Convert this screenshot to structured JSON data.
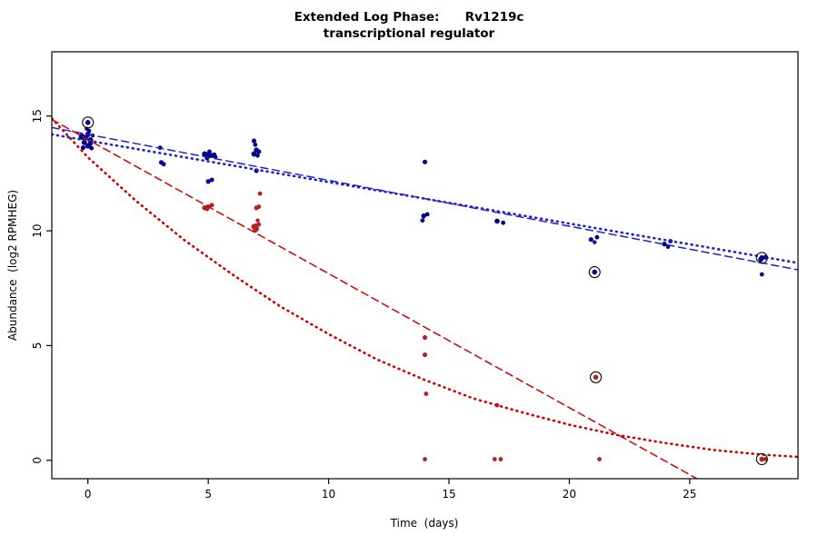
{
  "title": {
    "line1": "Extended Log Phase:      Rv1219c",
    "line2": "transcriptional regulator"
  },
  "chart_data": {
    "type": "scatter",
    "title": "Extended Log Phase: Rv1219c transcriptional regulator",
    "xlabel": "Time  (days)",
    "ylabel": "Abundance  (log2 RPMHEG)",
    "xlim": [
      -1.5,
      29.5
    ],
    "ylim": [
      -0.8,
      17.8
    ],
    "x_ticks": [
      0,
      5,
      10,
      15,
      20,
      25
    ],
    "y_ticks": [
      0,
      5,
      10,
      15
    ],
    "grid": false,
    "legend": "none",
    "colors": {
      "blue_points": "#00008B",
      "red_points": "#B22222",
      "blue_line": "#2020CC",
      "red_line": "#D00000",
      "outline": "#000000"
    },
    "series": [
      {
        "name": "blue-replicates",
        "color": "#00008B",
        "points": [
          [
            -0.25,
            14.1,
            3.5
          ],
          [
            0,
            14.2,
            3
          ],
          [
            -0.1,
            14.05,
            2.8
          ],
          [
            0.1,
            13.95,
            3.2
          ],
          [
            -0.15,
            13.85,
            3
          ],
          [
            0.1,
            13.8,
            2.6
          ],
          [
            0,
            13.7,
            3
          ],
          [
            -0.2,
            13.62,
            2.6
          ],
          [
            0.15,
            13.6,
            2.4
          ],
          [
            0.05,
            14.35,
            2.4
          ],
          [
            -0.05,
            14.45,
            2.2
          ],
          [
            0.2,
            14.15,
            2.2
          ],
          [
            3,
            13.62,
            2.4
          ],
          [
            3.05,
            12.98,
            2.6
          ],
          [
            3.15,
            12.9,
            2.4
          ],
          [
            4.85,
            13.35,
            3
          ],
          [
            5,
            13.3,
            3.4
          ],
          [
            5.15,
            13.28,
            2.8
          ],
          [
            5.05,
            13.45,
            2.4
          ],
          [
            5.25,
            13.32,
            2.4
          ],
          [
            4.95,
            13.18,
            2.6
          ],
          [
            5.3,
            13.22,
            2.2
          ],
          [
            5.0,
            12.15,
            2.6
          ],
          [
            5.15,
            12.22,
            2.4
          ],
          [
            6.9,
            13.92,
            2.6
          ],
          [
            6.95,
            13.75,
            2.4
          ],
          [
            7.0,
            13.52,
            2.8
          ],
          [
            7.1,
            13.45,
            2.6
          ],
          [
            6.9,
            13.35,
            3
          ],
          [
            7.05,
            13.28,
            2.4
          ],
          [
            7.0,
            12.62,
            2.6
          ],
          [
            14,
            13.0,
            2.6
          ],
          [
            13.95,
            10.65,
            2.8
          ],
          [
            14.1,
            10.72,
            2.4
          ],
          [
            13.9,
            10.45,
            2.4
          ],
          [
            17,
            10.42,
            2.8
          ],
          [
            17.25,
            10.35,
            2.4
          ],
          [
            20.9,
            9.62,
            2.6
          ],
          [
            21.15,
            9.72,
            2.4
          ],
          [
            21.05,
            9.5,
            2.2
          ],
          [
            23.95,
            9.42,
            2.6
          ],
          [
            24.2,
            9.55,
            2.4
          ],
          [
            24.1,
            9.3,
            2.2
          ],
          [
            27.95,
            8.75,
            2.8
          ],
          [
            28.15,
            8.85,
            2.6
          ],
          [
            28.0,
            8.1,
            2.4
          ]
        ]
      },
      {
        "name": "red-replicates",
        "color": "#B22222",
        "points": [
          [
            4.85,
            11.0,
            2.8
          ],
          [
            5.0,
            11.05,
            2.6
          ],
          [
            5.15,
            11.12,
            2.4
          ],
          [
            4.95,
            10.95,
            2.4
          ],
          [
            6.9,
            10.18,
            3
          ],
          [
            7.0,
            10.22,
            2.8
          ],
          [
            7.0,
            10.08,
            2.8
          ],
          [
            7.1,
            10.28,
            2.4
          ],
          [
            6.95,
            10.02,
            2.6
          ],
          [
            7.05,
            10.45,
            2.2
          ],
          [
            7.0,
            11.0,
            2.6
          ],
          [
            7.1,
            11.05,
            2.4
          ],
          [
            7.15,
            11.62,
            2.4
          ],
          [
            14,
            5.35,
            2.6
          ],
          [
            14,
            4.6,
            2.6
          ],
          [
            14.05,
            2.9,
            2.4
          ],
          [
            14,
            0.05,
            2.4
          ],
          [
            17,
            2.4,
            2.4
          ],
          [
            16.9,
            0.05,
            2.4
          ],
          [
            17.15,
            0.05,
            2.4
          ],
          [
            21.25,
            0.05,
            2.4
          ],
          [
            28.15,
            0.05,
            2.4
          ]
        ]
      }
    ],
    "outlined_points": [
      {
        "x": 0,
        "y": 14.72,
        "color": "#00008B"
      },
      {
        "x": 21.05,
        "y": 8.2,
        "color": "#00008B"
      },
      {
        "x": 21.1,
        "y": 3.62,
        "color": "#B22222"
      },
      {
        "x": 28.0,
        "y": 8.82,
        "color": "#00008B"
      },
      {
        "x": 28.0,
        "y": 0.05,
        "color": "#B22222"
      }
    ],
    "trend_lines": [
      {
        "name": "blue-dashed-fit",
        "color": "#2020CC",
        "style": "dashed",
        "points": [
          [
            -1.5,
            14.5
          ],
          [
            29.5,
            8.3
          ]
        ]
      },
      {
        "name": "blue-dotted-fit",
        "color": "#2020CC",
        "style": "dotted",
        "points": [
          [
            -1.5,
            14.2
          ],
          [
            29.5,
            8.6
          ]
        ]
      },
      {
        "name": "red-dashed-fit",
        "color": "#D00000",
        "style": "dashed",
        "points": [
          [
            -1.5,
            14.85
          ],
          [
            25.3,
            -0.8
          ]
        ]
      },
      {
        "name": "red-dotted-fit",
        "color": "#D00000",
        "style": "dotted",
        "points": [
          [
            -1.5,
            14.9
          ],
          [
            0,
            13.2
          ],
          [
            2,
            11.3
          ],
          [
            4,
            9.6
          ],
          [
            6,
            8.1
          ],
          [
            8,
            6.7
          ],
          [
            10,
            5.5
          ],
          [
            12,
            4.4
          ],
          [
            14,
            3.5
          ],
          [
            16,
            2.7
          ],
          [
            18,
            2.1
          ],
          [
            20,
            1.55
          ],
          [
            22,
            1.1
          ],
          [
            24,
            0.75
          ],
          [
            26,
            0.45
          ],
          [
            28,
            0.25
          ],
          [
            29.5,
            0.15
          ]
        ]
      }
    ]
  }
}
